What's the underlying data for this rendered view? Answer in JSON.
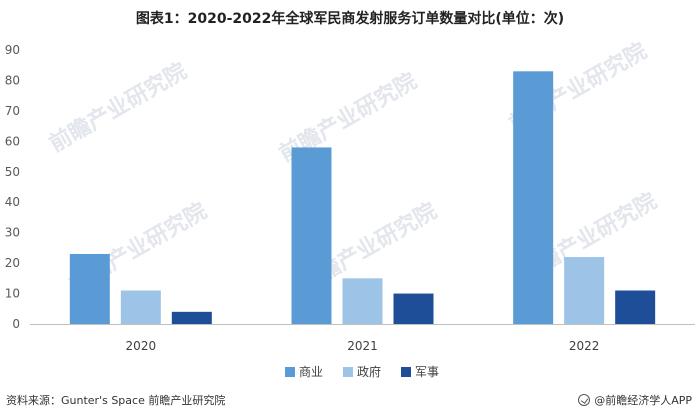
{
  "chart_data": {
    "type": "bar",
    "title": "图表1：2020-2022年全球军民商发射服务订单数量对比(单位：次)",
    "categories": [
      "2020",
      "2021",
      "2022"
    ],
    "series": [
      {
        "name": "商业",
        "values": [
          23,
          58,
          83
        ],
        "color": "#5b9bd5"
      },
      {
        "name": "政府",
        "values": [
          11,
          15,
          22
        ],
        "color": "#9dc3e6"
      },
      {
        "name": "军事",
        "values": [
          4,
          10,
          11
        ],
        "color": "#1f4e99"
      }
    ],
    "ylim": [
      0,
      90
    ],
    "yticks": [
      0,
      10,
      20,
      30,
      40,
      50,
      60,
      70,
      80,
      90
    ],
    "grid": false,
    "legend_position": "bottom"
  },
  "footer": {
    "source": "资料来源：Gunter's Space 前瞻产业研究院",
    "brand": "@前瞻经济学人APP"
  },
  "watermark": "前瞻产业研究院"
}
